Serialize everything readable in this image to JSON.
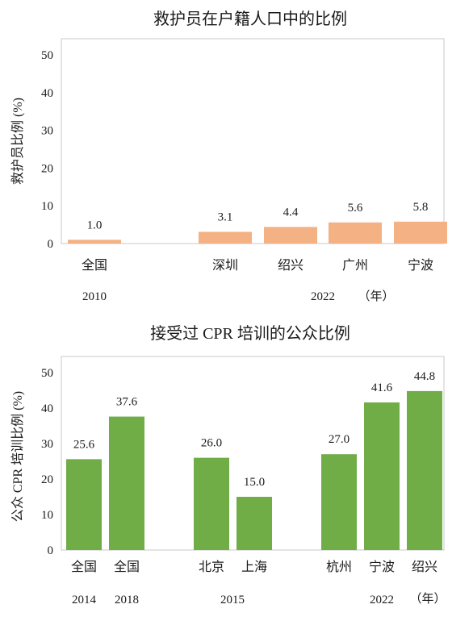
{
  "chart_data": [
    {
      "type": "bar",
      "title": "救护员在户籍人口中的比例",
      "ylabel": "救护员比例 (%)",
      "ylim": [
        0,
        50
      ],
      "yticks": [
        0,
        10,
        20,
        30,
        40,
        50
      ],
      "color": "#f4b183",
      "categories": [
        "全国",
        "深圳",
        "绍兴",
        "广州",
        "宁波"
      ],
      "values": [
        1.0,
        3.1,
        4.4,
        5.6,
        5.8
      ],
      "data_labels": [
        "1.0",
        "3.1",
        "4.4",
        "5.6",
        "5.8"
      ],
      "years": [
        {
          "label": "2010",
          "categories": [
            "全国"
          ]
        },
        {
          "label": "2022",
          "categories": [
            "深圳",
            "绍兴",
            "广州",
            "宁波"
          ]
        }
      ],
      "year_unit": "（年）",
      "grid": false
    },
    {
      "type": "bar",
      "title": "接受过 CPR 培训的公众比例",
      "ylabel": "公众 CPR 培训比例 (%)",
      "ylim": [
        0,
        50
      ],
      "yticks": [
        0,
        10,
        20,
        30,
        40,
        50
      ],
      "color": "#70ad47",
      "categories": [
        "全国",
        "全国",
        "北京",
        "上海",
        "杭州",
        "宁波",
        "绍兴"
      ],
      "values": [
        25.6,
        37.6,
        26.0,
        15.0,
        27.0,
        41.6,
        44.8
      ],
      "data_labels": [
        "25.6",
        "37.6",
        "26.0",
        "15.0",
        "27.0",
        "41.6",
        "44.8"
      ],
      "years": [
        {
          "label": "2014",
          "categories": [
            "全国"
          ]
        },
        {
          "label": "2018",
          "categories": [
            "全国"
          ]
        },
        {
          "label": "2015",
          "categories": [
            "北京",
            "上海"
          ]
        },
        {
          "label": "2022",
          "categories": [
            "杭州",
            "宁波",
            "绍兴"
          ]
        }
      ],
      "year_unit": "（年）",
      "grid": false
    }
  ]
}
